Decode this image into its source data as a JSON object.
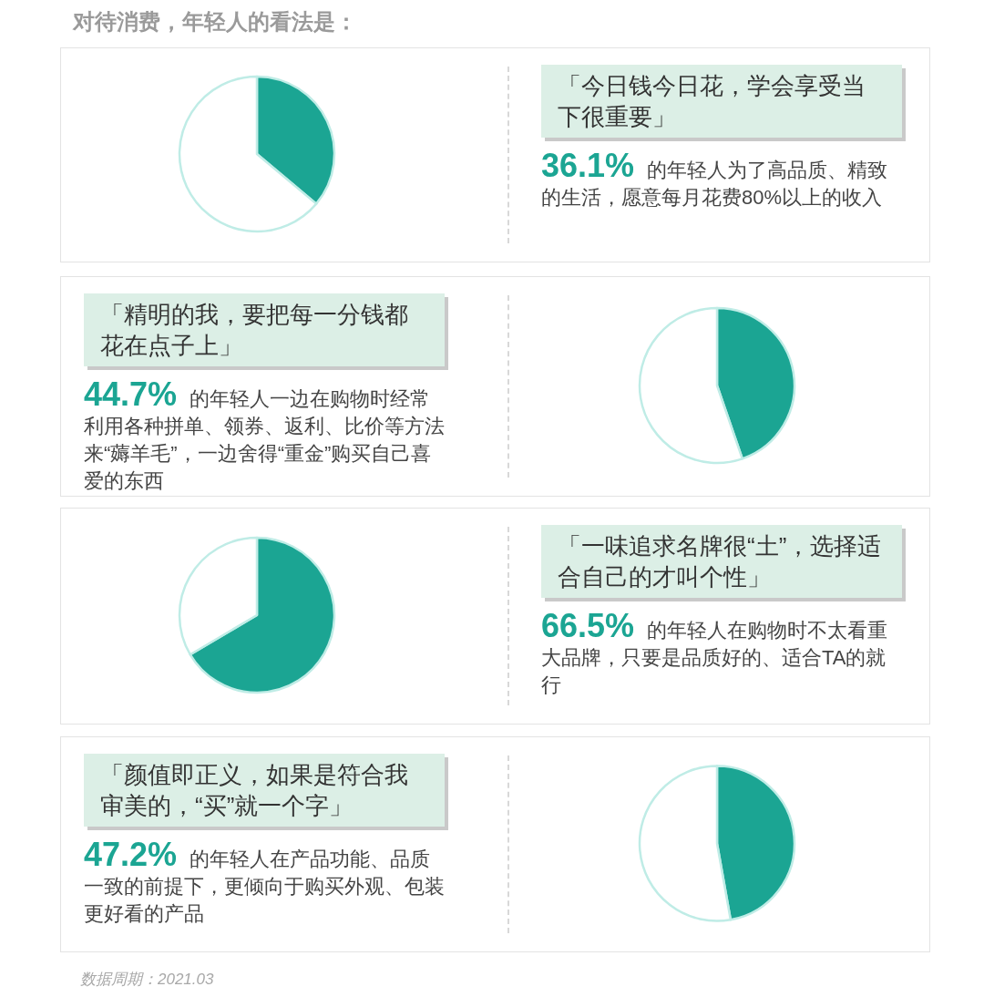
{
  "chart_data": [
    {
      "type": "pie",
      "title": "对待消费，年轻人的看法是：",
      "subtitle": "「今日钱今日花，学会享受当下很重要」",
      "categories": [
        null,
        null
      ],
      "values": [
        36.1,
        63.9
      ],
      "colors": [
        "#1ba593",
        "#ffffff"
      ],
      "annotations": [
        "36.1%",
        "的年轻人为了高品质、精致的生活，愿意每月花费80%以上的收入"
      ]
    },
    {
      "type": "pie",
      "subtitle": "「精明的我，要把每一分钱都花在点子上」",
      "categories": [
        null,
        null
      ],
      "values": [
        44.7,
        55.3
      ],
      "colors": [
        "#1ba593",
        "#ffffff"
      ],
      "annotations": [
        "44.7%",
        "的年轻人一边在购物时经常利用各种拼单、领券、返利、比价等方法来“薅羊毛”，一边舍得“重金”购买自己喜爱的东西"
      ]
    },
    {
      "type": "pie",
      "subtitle": "「一味追求名牌很“土”，选择适合自己的才叫个性」",
      "categories": [
        null,
        null
      ],
      "values": [
        66.5,
        33.5
      ],
      "colors": [
        "#1ba593",
        "#ffffff"
      ],
      "annotations": [
        "66.5%",
        "的年轻人在购物时不太看重大品牌，只要是品质好的、适合TA的就行"
      ]
    },
    {
      "type": "pie",
      "subtitle": "「颜值即正义，如果是符合我审美的，“买”就一个字」",
      "categories": [
        null,
        null
      ],
      "values": [
        47.2,
        52.8
      ],
      "colors": [
        "#1ba593",
        "#ffffff"
      ],
      "annotations": [
        "47.2%",
        "的年轻人在产品功能、品质一致的前提下，更倾向于购买外观、包装更好看的产品",
        "数据周期：2021.03"
      ]
    }
  ]
}
